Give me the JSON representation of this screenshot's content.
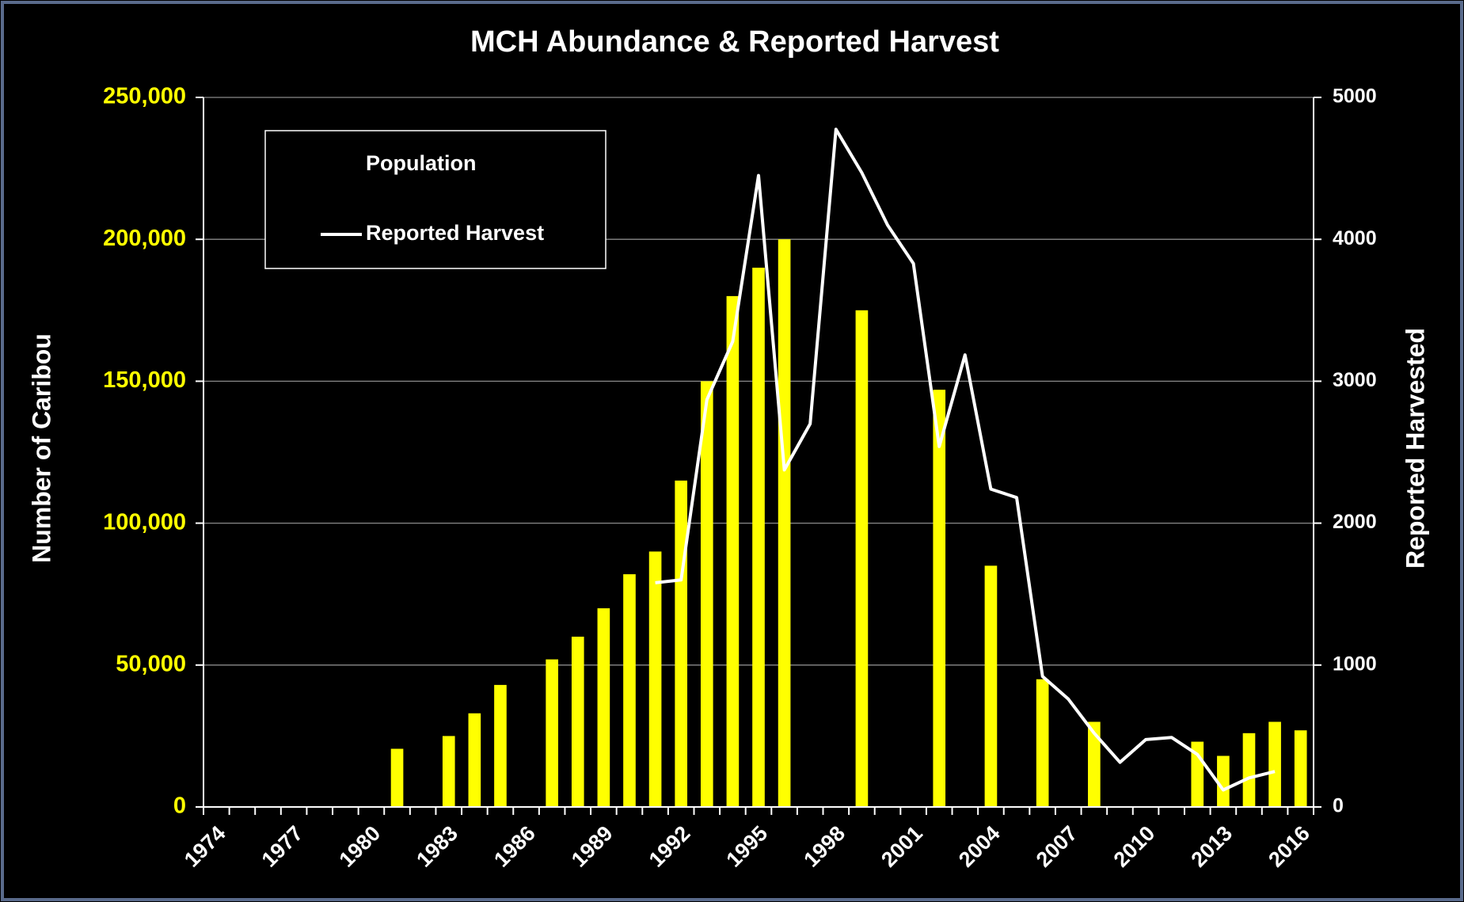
{
  "chart_data": {
    "type": "bar+line",
    "title": "MCH Abundance & Reported Harvest",
    "y_label": "Number  of  Caribou",
    "y2_label": "Reported   Harvested",
    "categories": [
      "1974",
      null,
      null,
      "1977",
      null,
      null,
      "1980",
      null,
      null,
      "1983",
      null,
      null,
      "1986",
      null,
      null,
      "1989",
      null,
      null,
      "1992",
      null,
      null,
      "1995",
      null,
      null,
      "1998",
      null,
      null,
      "2001",
      null,
      null,
      "2004",
      null,
      null,
      "2007",
      null,
      null,
      "2010",
      null,
      null,
      "2013",
      null,
      null,
      "2016"
    ],
    "series": [
      {
        "name": "Population",
        "type": "bar",
        "color": "#ffff00",
        "values": [
          null,
          null,
          null,
          null,
          null,
          null,
          null,
          20500,
          null,
          25000,
          33000,
          43000,
          null,
          52000,
          60000,
          70000,
          82000,
          90000,
          115000,
          150000,
          180000,
          190000,
          200000,
          null,
          null,
          175000,
          null,
          null,
          147000,
          null,
          85000,
          null,
          45000,
          null,
          30000,
          null,
          null,
          null,
          23000,
          18000,
          26000,
          30000,
          27000
        ]
      },
      {
        "name": "Reported Harvest",
        "type": "line",
        "axis": "y2",
        "color": "#ffffff",
        "values": [
          null,
          null,
          null,
          null,
          null,
          null,
          null,
          null,
          null,
          null,
          null,
          null,
          null,
          null,
          null,
          null,
          null,
          1580,
          1600,
          2870,
          3280,
          4450,
          2375,
          2700,
          4775,
          4470,
          4100,
          3830,
          2540,
          3185,
          2240,
          2180,
          920,
          760,
          520,
          315,
          475,
          490,
          370,
          120,
          205,
          250,
          null
        ]
      }
    ],
    "ylim": [
      0,
      250000
    ],
    "yticks": [
      {
        "value": 0,
        "label": "0"
      },
      {
        "value": 50000,
        "label": "50,000"
      },
      {
        "value": 100000,
        "label": "100,000"
      },
      {
        "value": 150000,
        "label": "150,000"
      },
      {
        "value": 200000,
        "label": "200,000"
      },
      {
        "value": 250000,
        "label": "250,000"
      }
    ],
    "y2lim": [
      0,
      5000
    ],
    "y2ticks": [
      0,
      1000,
      2000,
      3000,
      4000,
      5000
    ],
    "grid": true,
    "legend": "upper left"
  }
}
